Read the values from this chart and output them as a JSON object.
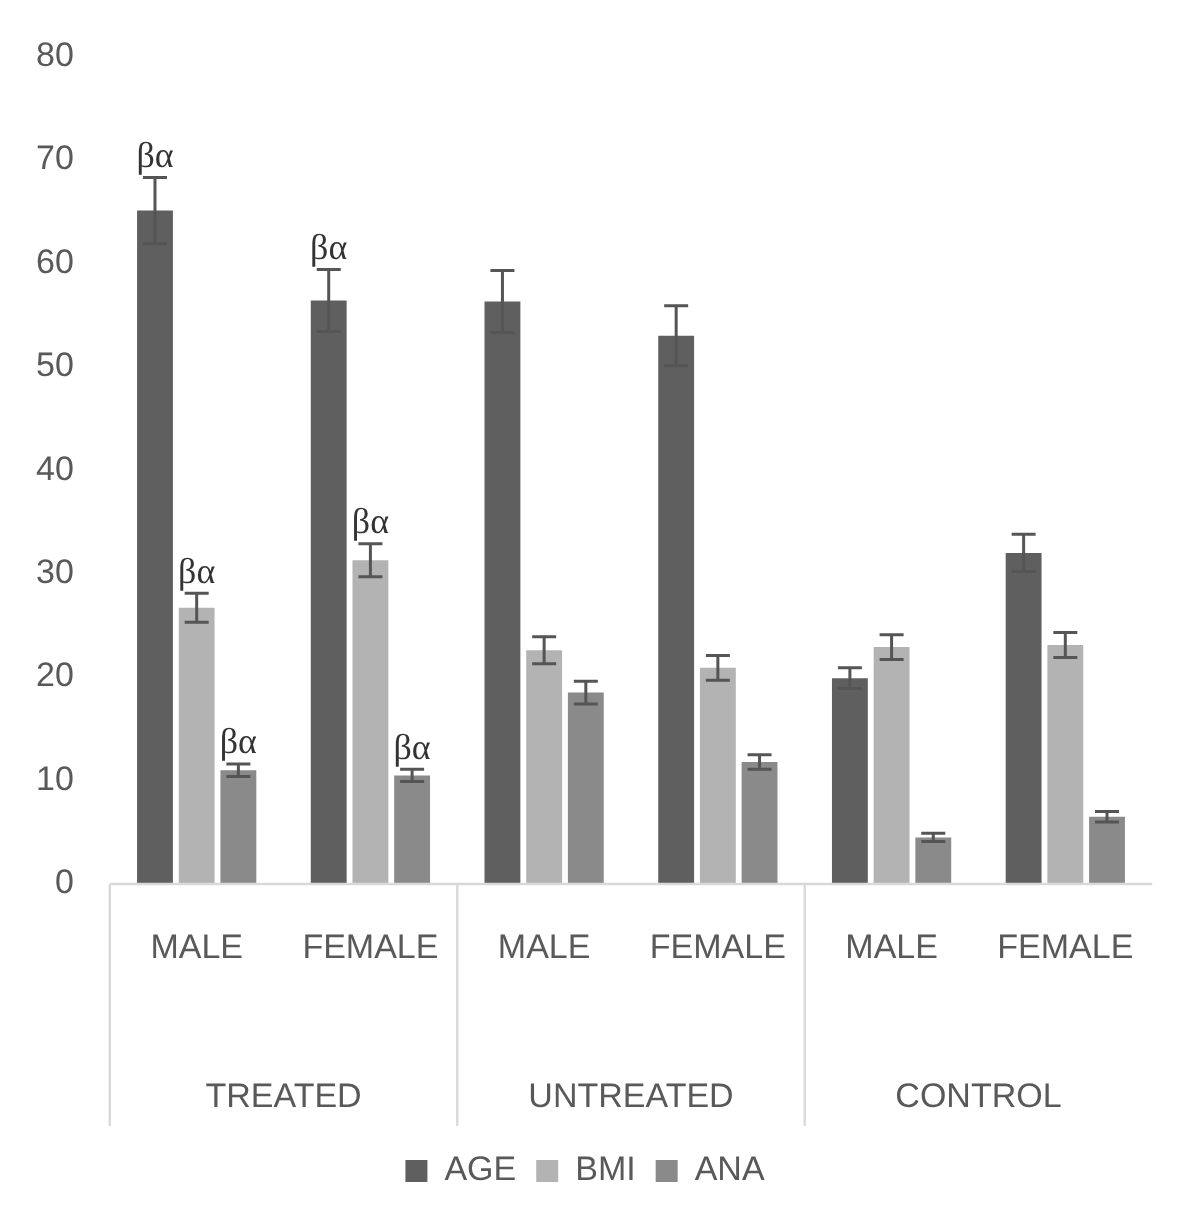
{
  "chart_data": {
    "type": "bar",
    "categories": [
      "MALE",
      "FEMALE",
      "MALE",
      "FEMALE",
      "MALE",
      "FEMALE"
    ],
    "annotations": [
      "TREATED",
      "UNTREATED",
      "CONTROL"
    ],
    "series": [
      {
        "name": "AGE",
        "color": "#5f5f5f",
        "values": [
          65.1,
          56.4,
          56.3,
          53.0,
          19.9,
          32.0
        ],
        "errors": [
          3.2,
          3.0,
          3.0,
          2.9,
          1.0,
          1.8
        ],
        "value_labels": [
          "βα",
          "βα",
          null,
          null,
          null,
          null
        ]
      },
      {
        "name": "BMI",
        "color": "#b3b3b3",
        "values": [
          26.7,
          31.3,
          22.6,
          20.9,
          22.9,
          23.1
        ],
        "errors": [
          1.4,
          1.6,
          1.3,
          1.2,
          1.2,
          1.2
        ],
        "value_labels": [
          "βα",
          "βα",
          null,
          null,
          null,
          null
        ]
      },
      {
        "name": "ANA",
        "color": "#8a8a8a",
        "values": [
          11.0,
          10.5,
          18.5,
          11.8,
          4.5,
          6.5
        ],
        "errors": [
          0.6,
          0.6,
          1.1,
          0.7,
          0.4,
          0.5
        ],
        "value_labels": [
          "βα",
          "βα",
          null,
          null,
          null,
          null
        ]
      }
    ],
    "ylim": [
      0,
      80
    ],
    "yticks": [
      0,
      10,
      20,
      30,
      40,
      50,
      60,
      70,
      80
    ],
    "grid": false,
    "legend": "bottom"
  }
}
